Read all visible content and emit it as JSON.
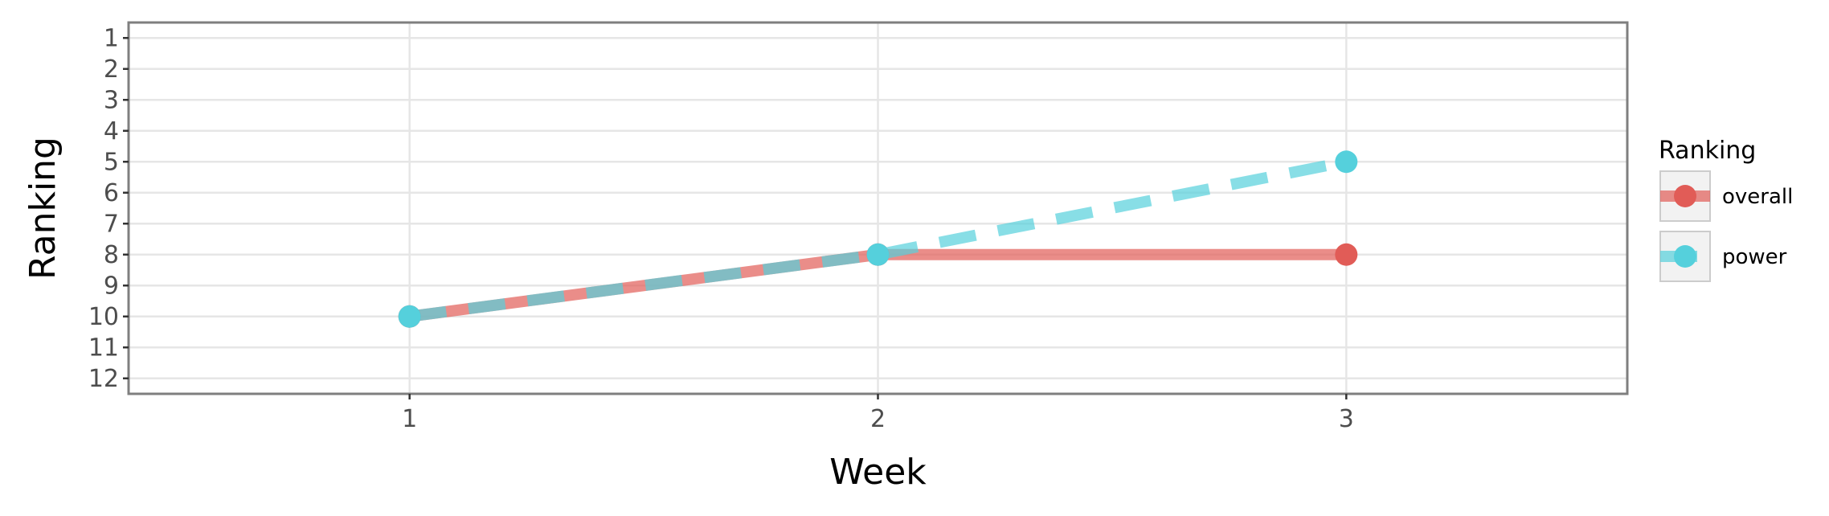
{
  "chart_data": {
    "type": "line",
    "xlabel": "Week",
    "ylabel": "Ranking",
    "x": [
      1,
      2,
      3
    ],
    "x_ticks": [
      "1",
      "2",
      "3"
    ],
    "xlim": [
      0.4,
      3.6
    ],
    "y_ticks": [
      "1",
      "2",
      "3",
      "4",
      "5",
      "6",
      "7",
      "8",
      "9",
      "10",
      "11",
      "12"
    ],
    "ylim": [
      12.5,
      0.5
    ],
    "y_reversed": true,
    "grid": true,
    "legend": {
      "title": "Ranking",
      "placement": "right"
    },
    "series": [
      {
        "name": "overall",
        "values": [
          10,
          8,
          8
        ],
        "color": "#e15c57",
        "line_style": "solid"
      },
      {
        "name": "power",
        "values": [
          10,
          8,
          5
        ],
        "color": "#55d0dc",
        "line_style": "dashed"
      }
    ]
  }
}
